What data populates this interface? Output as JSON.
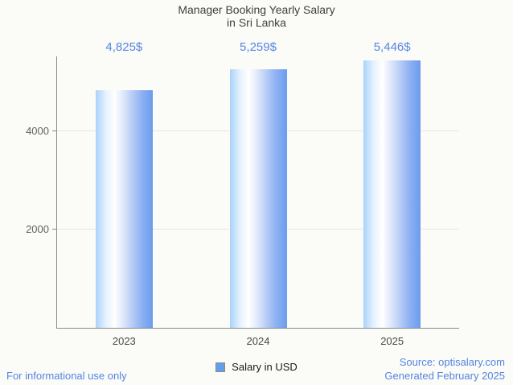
{
  "title": {
    "line1": "Manager Booking Yearly Salary",
    "line2": "in Sri Lanka"
  },
  "chart_data": {
    "type": "bar",
    "categories": [
      "2023",
      "2024",
      "2025"
    ],
    "series": [
      {
        "name": "Salary in USD",
        "values": [
          4825,
          5259,
          5446
        ]
      }
    ],
    "annotations": [
      "4,825$",
      "5,259$",
      "5,446$"
    ],
    "title": "Manager Booking Yearly Salary in Sri Lanka",
    "xlabel": "",
    "ylabel": "",
    "ylim": [
      0,
      5520
    ],
    "yticks": [
      2000,
      4000
    ],
    "grid": true,
    "legend_position": "bottom",
    "bar_gradient": [
      "#aad2fb",
      "#ffffff",
      "#6a9cee"
    ],
    "annotation_color": "#5585e2",
    "axis_color": "#8a8a8a",
    "gridline_color": "#e8e6e2",
    "background_color": "#fbfbf8"
  },
  "legend": {
    "label": "Salary in USD",
    "swatch_color": "#63a0e9"
  },
  "footer": {
    "disclaimer": "For informational use only",
    "source": "Source: optisalary.com",
    "generated": "Generated February 2025",
    "text_color": "#5585e2"
  }
}
